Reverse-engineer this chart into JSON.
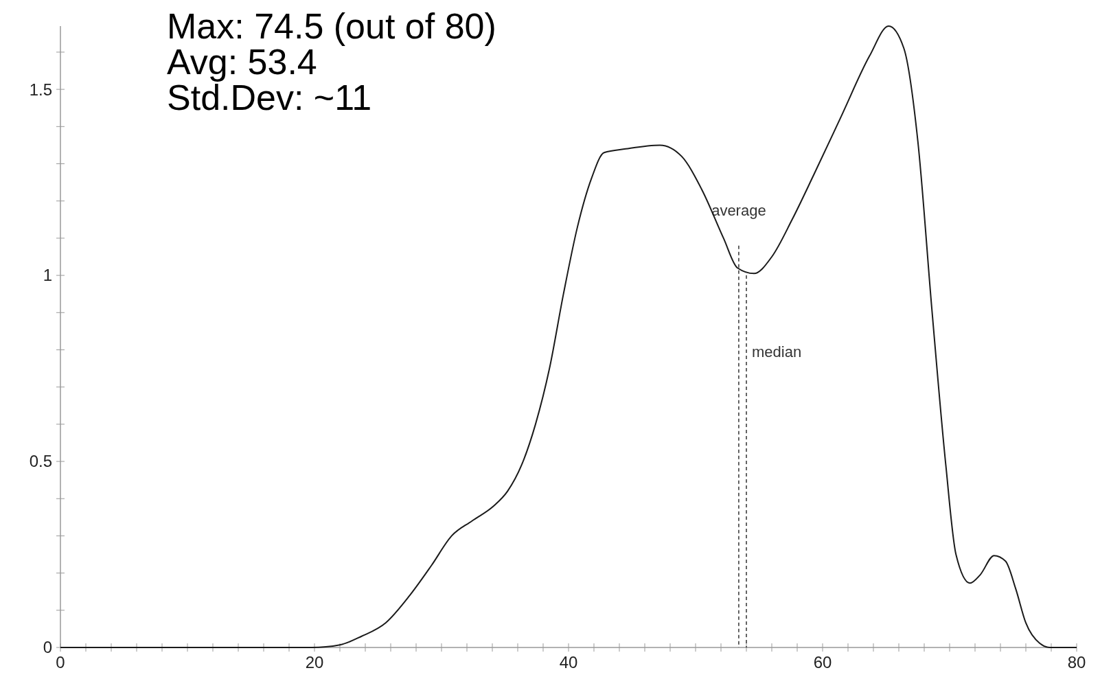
{
  "chart_data": {
    "type": "line",
    "annotations": [
      "Max: 74.5 (out of 80)",
      "Avg: 53.4",
      "Std.Dev: ~11"
    ],
    "xlim": [
      0,
      80
    ],
    "ylim": [
      0,
      1.67
    ],
    "xticks": [
      0,
      {
        "value": 2,
        "label": null
      },
      {
        "value": 4,
        "label": null
      },
      {
        "value": 6,
        "label": null
      },
      {
        "value": 8,
        "label": null
      },
      {
        "value": 10,
        "label": null
      },
      {
        "value": 12,
        "label": null
      },
      {
        "value": 14,
        "label": null
      },
      {
        "value": 16,
        "label": null
      },
      {
        "value": 18,
        "label": null
      },
      20,
      {
        "value": 22,
        "label": null
      },
      {
        "value": 24,
        "label": null
      },
      {
        "value": 26,
        "label": null
      },
      {
        "value": 28,
        "label": null
      },
      {
        "value": 30,
        "label": null
      },
      {
        "value": 32,
        "label": null
      },
      {
        "value": 34,
        "label": null
      },
      {
        "value": 36,
        "label": null
      },
      {
        "value": 38,
        "label": null
      },
      40,
      {
        "value": 42,
        "label": null
      },
      {
        "value": 44,
        "label": null
      },
      {
        "value": 46,
        "label": null
      },
      {
        "value": 48,
        "label": null
      },
      {
        "value": 50,
        "label": null
      },
      {
        "value": 52,
        "label": null
      },
      {
        "value": 54,
        "label": null
      },
      {
        "value": 56,
        "label": null
      },
      {
        "value": 58,
        "label": null
      },
      60,
      {
        "value": 62,
        "label": null
      },
      {
        "value": 64,
        "label": null
      },
      {
        "value": 66,
        "label": null
      },
      {
        "value": 68,
        "label": null
      },
      {
        "value": 70,
        "label": null
      },
      {
        "value": 72,
        "label": null
      },
      {
        "value": 74,
        "label": null
      },
      {
        "value": 76,
        "label": null
      },
      {
        "value": 78,
        "label": null
      },
      80
    ],
    "yticks": [
      0,
      {
        "value": 0.1,
        "label": null
      },
      {
        "value": 0.2,
        "label": null
      },
      {
        "value": 0.3,
        "label": null
      },
      {
        "value": 0.4,
        "label": null
      },
      0.5,
      {
        "value": 0.6,
        "label": null
      },
      {
        "value": 0.7,
        "label": null
      },
      {
        "value": 0.8,
        "label": null
      },
      {
        "value": 0.9,
        "label": null
      },
      1,
      {
        "value": 1.1,
        "label": null
      },
      {
        "value": 1.2,
        "label": null
      },
      {
        "value": 1.3,
        "label": null
      },
      {
        "value": 1.4,
        "label": null
      },
      1.5,
      {
        "value": 1.6,
        "label": null
      }
    ],
    "grid": false,
    "marker": "none",
    "line_style": "solid",
    "ref_lines": [
      {
        "axis": "x",
        "value": 53.4,
        "label": "average",
        "line_style": "dashed",
        "color": "#333333"
      },
      {
        "axis": "x",
        "value": 54.0,
        "label": "median",
        "line_style": "dashed",
        "color": "#333333"
      }
    ],
    "series": [
      {
        "color": "#1a1a1a",
        "x": [
          0,
          10,
          19.8,
          22,
          23.7,
          25.6,
          27.5,
          29.2,
          30.8,
          32.4,
          34.1,
          35.2,
          36.3,
          37.4,
          38.5,
          39.6,
          40.7,
          41.8,
          42.8,
          44.5,
          47.2,
          48.9,
          50.5,
          52.2,
          53.3,
          54.6,
          56,
          57.6,
          59.3,
          61.5,
          63.7,
          65.2,
          66.4,
          67.5,
          68.6,
          69.7,
          70.5,
          71.6,
          72.4,
          73.5,
          74.4,
          75.2,
          76,
          77.1,
          77.9,
          80
        ],
        "values": [
          0,
          0,
          0,
          0.007,
          0.03,
          0.066,
          0.14,
          0.22,
          0.3,
          0.34,
          0.38,
          0.42,
          0.49,
          0.6,
          0.75,
          0.95,
          1.13,
          1.26,
          1.33,
          1.34,
          1.35,
          1.32,
          1.23,
          1.1,
          1.02,
          1.005,
          1.05,
          1.15,
          1.27,
          1.43,
          1.59,
          1.67,
          1.61,
          1.36,
          0.91,
          0.49,
          0.25,
          0.173,
          0.195,
          0.247,
          0.232,
          0.158,
          0.066,
          0.011,
          0,
          0
        ]
      }
    ]
  }
}
